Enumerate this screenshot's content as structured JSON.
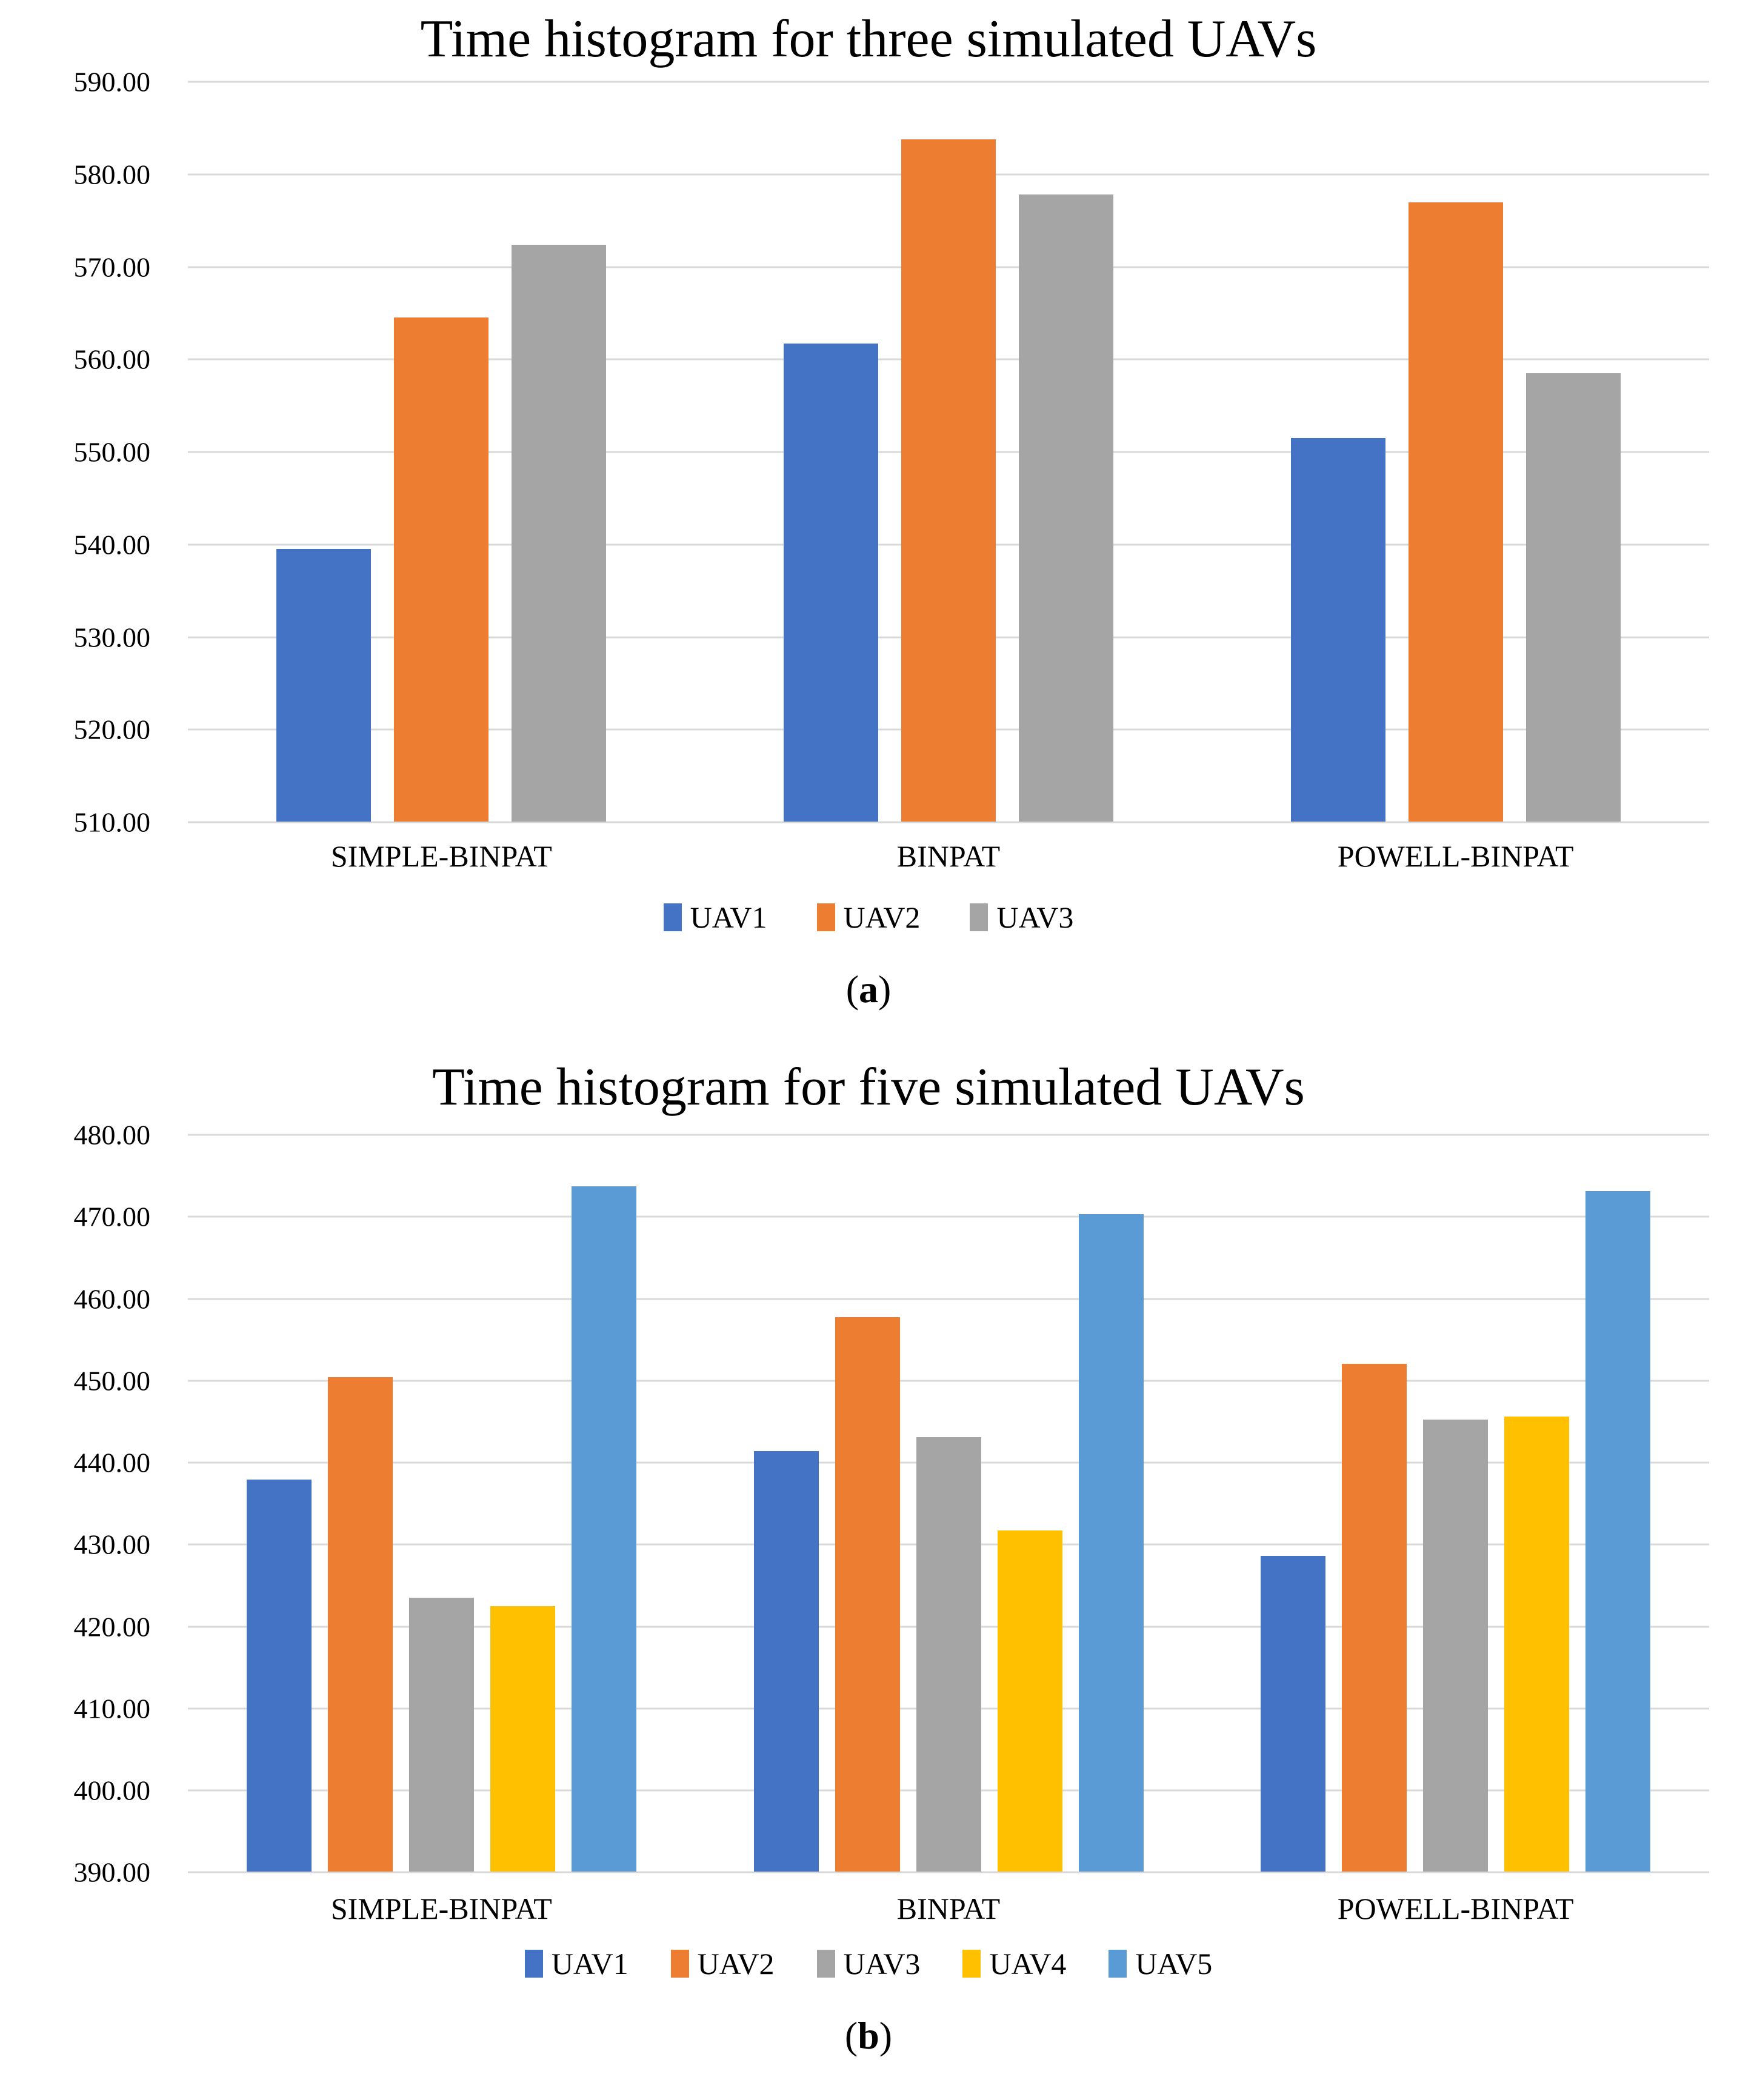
{
  "colors": {
    "gridline": "#D9D9D9",
    "text": "#000000",
    "background": "#FFFFFF"
  },
  "figure_labels": {
    "a": "(a)",
    "b": "(b)"
  },
  "chart_data": [
    {
      "type": "bar",
      "title": "Time histogram for three simulated UAVs",
      "figure_label": "(a)",
      "categories": [
        "SIMPLE-BINPAT",
        "BINPAT",
        "POWELL-BINPAT"
      ],
      "series": [
        {
          "name": "UAV1",
          "color": "#4472C4",
          "values": [
            539.5,
            561.7,
            551.5
          ]
        },
        {
          "name": "UAV2",
          "color": "#ED7D31",
          "values": [
            564.5,
            583.8,
            577.0
          ]
        },
        {
          "name": "UAV3",
          "color": "#A5A5A5",
          "values": [
            572.4,
            577.8,
            558.5
          ]
        }
      ],
      "ylim": [
        510,
        590
      ],
      "ytick_step": 10,
      "yticks": [
        "590.00",
        "580.00",
        "570.00",
        "560.00",
        "550.00",
        "540.00",
        "530.00",
        "520.00",
        "510.00"
      ],
      "grid": true,
      "legend_position": "bottom",
      "xlabel": "",
      "ylabel": ""
    },
    {
      "type": "bar",
      "title": "Time histogram for five simulated UAVs",
      "figure_label": "(b)",
      "categories": [
        "SIMPLE-BINPAT",
        "BINPAT",
        "POWELL-BINPAT"
      ],
      "series": [
        {
          "name": "UAV1",
          "color": "#4472C4",
          "values": [
            437.9,
            441.4,
            428.6
          ]
        },
        {
          "name": "UAV2",
          "color": "#ED7D31",
          "values": [
            450.4,
            457.7,
            452.0
          ]
        },
        {
          "name": "UAV3",
          "color": "#A5A5A5",
          "values": [
            423.5,
            443.1,
            445.2
          ]
        },
        {
          "name": "UAV4",
          "color": "#FFC000",
          "values": [
            422.4,
            431.7,
            445.6
          ]
        },
        {
          "name": "UAV5",
          "color": "#5B9BD5",
          "values": [
            473.7,
            470.3,
            473.1
          ]
        }
      ],
      "ylim": [
        390,
        480
      ],
      "ytick_step": 10,
      "yticks": [
        "480.00",
        "470.00",
        "460.00",
        "450.00",
        "440.00",
        "430.00",
        "420.00",
        "410.00",
        "400.00",
        "390.00"
      ],
      "grid": true,
      "legend_position": "bottom",
      "xlabel": "",
      "ylabel": ""
    }
  ]
}
